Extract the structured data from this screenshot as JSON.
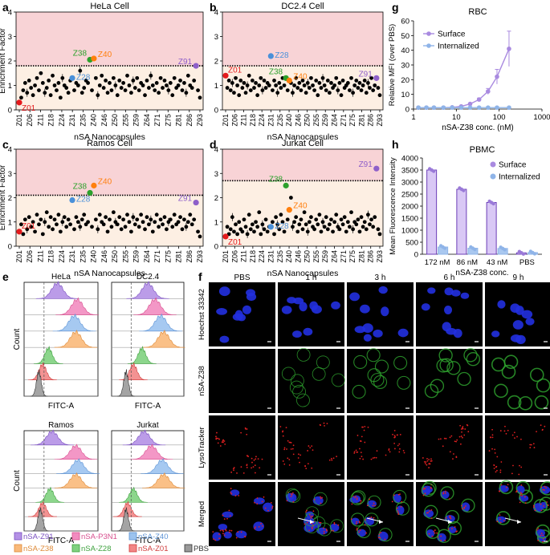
{
  "colors": {
    "Z01": "#e41a1c",
    "Z28": "#4a90d9",
    "Z38": "#2ca02c",
    "Z40": "#ff7f0e",
    "Z91": "#8e5fc9",
    "P3N1": "#ee6fa5",
    "PBS": "#8a8a8a",
    "upper_band": "#f8d3d6",
    "lower_band": "#fdefe3",
    "surface": "#a98ae0",
    "internalized": "#8fb4e8"
  },
  "scatter_xtick_labels": [
    "Z01",
    "Z06",
    "Z11",
    "Z18",
    "Z24",
    "Z31",
    "Z35",
    "Z40",
    "Z46",
    "Z50",
    "Z55",
    "Z59",
    "Z64",
    "Z71",
    "Z75",
    "Z81",
    "Z86",
    "Z93"
  ],
  "chart_data": [
    {
      "panel": "a",
      "type": "scatter",
      "title": "HeLa Cell",
      "xlabel": "nSA Nanocapsules",
      "ylabel": "Enrichment Factor",
      "ylim": [
        0,
        4
      ],
      "yticks": [
        0,
        1,
        2,
        3,
        4
      ],
      "threshold": 1.8,
      "highlights": [
        {
          "label": "Z01",
          "x": 1,
          "y": 0.3
        },
        {
          "label": "Z28",
          "x": 28,
          "y": 1.3
        },
        {
          "label": "Z38",
          "x": 37,
          "y": 2.05
        },
        {
          "label": "Z40",
          "x": 39,
          "y": 2.1
        },
        {
          "label": "Z91",
          "x": 91,
          "y": 1.8
        }
      ],
      "values": [
        0.3,
        0.5,
        0.8,
        1.1,
        0.7,
        1.2,
        0.9,
        0.6,
        1.0,
        1.3,
        0.8,
        1.5,
        1.1,
        0.7,
        0.9,
        1.2,
        0.6,
        1.4,
        1.0,
        0.8,
        1.1,
        0.5,
        1.3,
        1.0,
        0.9,
        0.7,
        1.2,
        1.3,
        0.8,
        1.1,
        1.0,
        1.6,
        0.7,
        0.9,
        1.2,
        1.1,
        2.05,
        0.8,
        2.1,
        1.3,
        0.6,
        1.0,
        1.4,
        0.9,
        1.2,
        0.7,
        1.1,
        0.8,
        1.3,
        1.0,
        0.6,
        1.2,
        0.9,
        1.1,
        0.8,
        1.4,
        1.0,
        0.7,
        1.2,
        0.9,
        1.3,
        0.8,
        1.1,
        1.0,
        0.6,
        1.2,
        0.9,
        1.4,
        1.0,
        0.8,
        1.1,
        0.7,
        1.3,
        0.9,
        1.2,
        1.0,
        0.8,
        1.1,
        0.6,
        1.3,
        0.9,
        1.0,
        1.2,
        0.8,
        1.1,
        0.7,
        1.4,
        1.0,
        0.9,
        1.2,
        1.8,
        0.8,
        0.5
      ]
    },
    {
      "panel": "b",
      "type": "scatter",
      "title": "DC2.4 Cell",
      "xlabel": "nSA Nanocapsules",
      "ylabel": "",
      "ylim": [
        0,
        4
      ],
      "yticks": [
        0,
        1,
        2,
        3,
        4
      ],
      "threshold": 1.8,
      "highlights": [
        {
          "label": "Z01",
          "x": 1,
          "y": 1.4
        },
        {
          "label": "Z28",
          "x": 28,
          "y": 2.2
        },
        {
          "label": "Z38",
          "x": 37,
          "y": 1.3
        },
        {
          "label": "Z40",
          "x": 39,
          "y": 1.2
        },
        {
          "label": "Z91",
          "x": 91,
          "y": 1.3
        }
      ],
      "values": [
        1.4,
        0.9,
        1.2,
        0.8,
        1.1,
        0.7,
        1.3,
        1.0,
        0.6,
        1.2,
        0.9,
        1.1,
        0.7,
        1.0,
        1.4,
        0.8,
        1.2,
        0.9,
        1.1,
        0.6,
        1.0,
        1.3,
        0.8,
        1.2,
        0.9,
        1.1,
        1.0,
        2.2,
        0.8,
        1.2,
        1.0,
        0.7,
        1.1,
        0.9,
        1.3,
        1.0,
        1.3,
        0.8,
        1.2,
        1.1,
        0.7,
        1.0,
        1.3,
        0.9,
        1.1,
        0.8,
        1.2,
        1.0,
        0.7,
        1.1,
        0.9,
        1.3,
        1.0,
        0.8,
        1.2,
        0.6,
        1.1,
        0.9,
        1.3,
        1.0,
        0.8,
        1.2,
        0.7,
        1.1,
        0.9,
        1.0,
        1.3,
        0.8,
        1.1,
        0.6,
        1.2,
        0.9,
        1.0,
        1.1,
        0.8,
        1.3,
        0.7,
        1.0,
        1.2,
        0.9,
        1.1,
        0.8,
        1.0,
        1.2,
        0.7,
        1.1,
        0.9,
        1.3,
        0.8,
        1.0,
        1.3,
        0.9,
        0.6
      ]
    },
    {
      "panel": "c",
      "type": "scatter",
      "title": "Ramos Cell",
      "xlabel": "nSA Nanocapsules",
      "ylabel": "Enrichment Factor",
      "ylim": [
        0,
        4
      ],
      "yticks": [
        0,
        1,
        2,
        3,
        4
      ],
      "threshold": 2.1,
      "highlights": [
        {
          "label": "Z01",
          "x": 1,
          "y": 0.6
        },
        {
          "label": "Z28",
          "x": 28,
          "y": 1.9
        },
        {
          "label": "Z38",
          "x": 37,
          "y": 2.2
        },
        {
          "label": "Z40",
          "x": 39,
          "y": 2.5
        },
        {
          "label": "Z91",
          "x": 91,
          "y": 1.8
        }
      ],
      "values": [
        0.6,
        0.9,
        0.5,
        1.1,
        0.7,
        1.2,
        0.8,
        1.0,
        0.6,
        1.3,
        0.9,
        1.1,
        0.5,
        1.0,
        1.4,
        0.8,
        1.2,
        0.7,
        1.1,
        0.9,
        1.3,
        0.6,
        1.0,
        1.2,
        0.8,
        1.1,
        0.9,
        1.9,
        0.7,
        1.2,
        1.0,
        0.8,
        1.1,
        1.3,
        0.9,
        1.0,
        2.2,
        0.8,
        2.5,
        1.1,
        0.7,
        1.3,
        1.0,
        0.9,
        1.2,
        0.6,
        1.1,
        0.8,
        1.4,
        1.0,
        0.9,
        1.2,
        0.7,
        1.1,
        0.8,
        1.3,
        1.0,
        0.6,
        1.2,
        0.9,
        1.1,
        0.8,
        1.3,
        1.0,
        0.7,
        1.2,
        0.9,
        1.1,
        0.6,
        1.0,
        1.3,
        0.8,
        1.1,
        0.9,
        1.2,
        0.7,
        1.0,
        1.1,
        0.8,
        1.3,
        0.9,
        1.0,
        1.2,
        0.7,
        1.1,
        0.8,
        1.0,
        1.3,
        0.9,
        1.1,
        1.8,
        0.6,
        0.4
      ]
    },
    {
      "panel": "d",
      "type": "scatter",
      "title": "Jurkat Cell",
      "xlabel": "nSA Nanocapsules",
      "ylabel": "",
      "ylim": [
        0,
        4
      ],
      "yticks": [
        0,
        1,
        2,
        3,
        4
      ],
      "threshold": 2.7,
      "highlights": [
        {
          "label": "Z01",
          "x": 1,
          "y": 0.4
        },
        {
          "label": "Z28",
          "x": 28,
          "y": 0.8
        },
        {
          "label": "Z38",
          "x": 37,
          "y": 2.5
        },
        {
          "label": "Z40",
          "x": 39,
          "y": 1.5
        },
        {
          "label": "Z91",
          "x": 91,
          "y": 3.2
        }
      ],
      "values": [
        0.4,
        0.8,
        0.5,
        0.7,
        1.2,
        0.6,
        0.9,
        0.5,
        1.0,
        0.7,
        0.6,
        1.1,
        0.8,
        0.5,
        1.3,
        0.7,
        0.9,
        0.6,
        1.0,
        0.8,
        1.4,
        0.5,
        0.9,
        0.7,
        1.1,
        0.6,
        0.8,
        0.8,
        1.0,
        0.5,
        1.2,
        0.9,
        0.7,
        1.3,
        1.0,
        0.6,
        2.5,
        1.1,
        1.5,
        2.0,
        0.8,
        1.0,
        1.2,
        0.6,
        0.9,
        1.1,
        0.7,
        1.4,
        0.9,
        0.6,
        1.0,
        1.2,
        0.8,
        0.7,
        1.1,
        0.9,
        1.3,
        0.6,
        1.0,
        0.8,
        1.2,
        0.7,
        0.9,
        1.1,
        0.6,
        1.0,
        1.3,
        0.8,
        0.7,
        1.1,
        0.9,
        1.2,
        0.6,
        1.0,
        0.8,
        1.4,
        0.7,
        1.0,
        0.9,
        1.1,
        0.6,
        1.2,
        0.8,
        1.0,
        0.7,
        1.3,
        0.9,
        1.1,
        0.8,
        1.2,
        3.2,
        0.7,
        0.5
      ]
    },
    {
      "panel": "g",
      "type": "line",
      "title": "RBC",
      "xlabel": "nSA-Z38 conc. (nM)",
      "ylabel": "Relative MFI (over PBS)",
      "xscale": "log",
      "xlim": [
        1,
        1000
      ],
      "ylim": [
        0,
        60
      ],
      "yticks": [
        0,
        10,
        20,
        30,
        40,
        50,
        60
      ],
      "xticks": [
        1,
        10,
        100,
        1000
      ],
      "legend": "top-left",
      "series": [
        {
          "name": "Surface",
          "x": [
            1.3,
            2,
            3,
            5,
            8,
            13,
            21,
            34,
            55,
            89,
            170
          ],
          "y": [
            1,
            1,
            1,
            1,
            1.2,
            1.8,
            3.5,
            6.5,
            12,
            22,
            41
          ],
          "err": [
            0,
            0,
            0,
            0,
            0,
            0.4,
            0.6,
            1,
            2,
            5,
            12
          ]
        },
        {
          "name": "Internalized",
          "x": [
            1.3,
            2,
            3,
            5,
            8,
            13,
            21,
            34,
            55,
            89,
            170
          ],
          "y": [
            1,
            1,
            1,
            1,
            1,
            1,
            1,
            1,
            1,
            1,
            1
          ],
          "err": [
            0,
            0,
            0,
            0,
            0,
            0,
            0,
            0,
            0,
            0,
            0
          ]
        }
      ]
    },
    {
      "panel": "h",
      "type": "bar",
      "title": "PBMC",
      "xlabel": "nSA-Z38 conc.",
      "ylabel": "Mean Fluorescence Intensity",
      "ylim": [
        0,
        4000
      ],
      "yticks": [
        0,
        500,
        1000,
        1500,
        2000,
        2500,
        3000,
        3500,
        4000
      ],
      "categories": [
        "172 nM",
        "86 nM",
        "43 nM",
        "PBS"
      ],
      "legend": "top-right",
      "series": [
        {
          "name": "Surface",
          "values": [
            3500,
            2700,
            2150,
            60
          ]
        },
        {
          "name": "Internalized",
          "values": [
            300,
            250,
            240,
            70
          ]
        }
      ]
    }
  ],
  "panels": {
    "a": "a",
    "b": "b",
    "c": "c",
    "d": "d",
    "e": "e",
    "f": "f",
    "g": "g",
    "h": "h"
  },
  "flow": {
    "count_label": "Count",
    "x_label": "FITC-A",
    "titles": [
      "HeLa",
      "DC2.4",
      "Ramos",
      "Jurkat"
    ],
    "legend": [
      {
        "label": "nSA-Z91",
        "color": "#b491e6"
      },
      {
        "label": "nSA-P3N1",
        "color": "#f28cc0"
      },
      {
        "label": "nSA-Z40",
        "color": "#9cc3ef"
      },
      {
        "label": "nSA-Z38",
        "color": "#f9b97a"
      },
      {
        "label": "nSA-Z28",
        "color": "#7fd17f"
      },
      {
        "label": "nSA-Z01",
        "color": "#f28686"
      },
      {
        "label": "PBS",
        "color": "#9a9a9a"
      }
    ],
    "histogram_peaks": {
      "HeLa": [
        0.45,
        0.72,
        0.68,
        0.7,
        0.33,
        0.25,
        0.2
      ],
      "DC2.4": [
        0.5,
        0.6,
        0.68,
        0.72,
        0.42,
        0.3,
        0.2
      ],
      "Ramos": [
        0.38,
        0.7,
        0.73,
        0.7,
        0.35,
        0.25,
        0.22
      ],
      "Jurkat": [
        0.45,
        0.55,
        0.7,
        0.72,
        0.3,
        0.22,
        0.2
      ]
    }
  },
  "micro": {
    "columns": [
      "PBS",
      "1 h",
      "3 h",
      "6 h",
      "9 h"
    ],
    "rows": [
      "Hoechst 33342",
      "nSA-Z38",
      "LysoTracker",
      "Merged"
    ]
  }
}
